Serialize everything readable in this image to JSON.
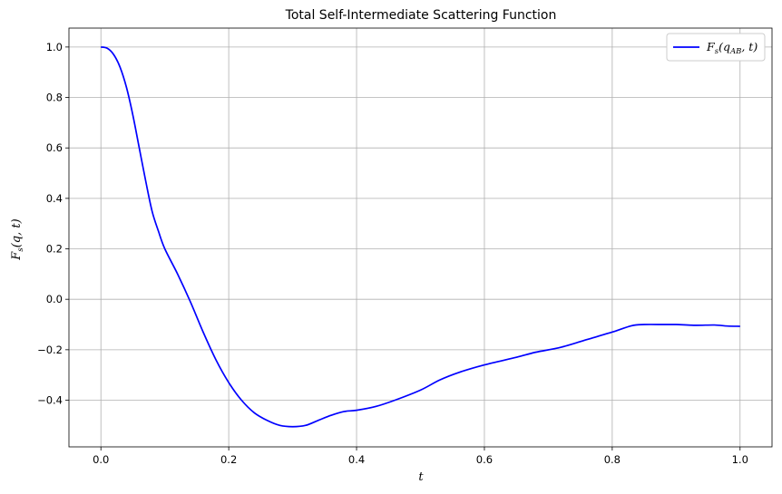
{
  "chart_data": {
    "type": "line",
    "title": "Total Self-Intermediate Scattering Function",
    "xlabel": "t",
    "ylabel": {
      "base": "F",
      "sub": "s",
      "args": "(q, t)"
    },
    "xlim": [
      -0.05,
      1.05
    ],
    "ylim": [
      -0.585,
      1.075
    ],
    "xticks": [
      0.0,
      0.2,
      0.4,
      0.6,
      0.8,
      1.0
    ],
    "xtick_labels": [
      "0.0",
      "0.2",
      "0.4",
      "0.6",
      "0.8",
      "1.0"
    ],
    "yticks": [
      -0.4,
      -0.2,
      0.0,
      0.2,
      0.4,
      0.6,
      0.8,
      1.0
    ],
    "ytick_labels": [
      "−0.4",
      "−0.2",
      "0.0",
      "0.2",
      "0.4",
      "0.6",
      "0.8",
      "1.0"
    ],
    "grid": true,
    "legend_position": "top-right",
    "series": [
      {
        "name": {
          "base": "F",
          "sub_s": "s",
          "arg_open": "(q",
          "sub_ab": "AB",
          "arg_close": ", t)"
        },
        "color": "#0000ff",
        "x": [
          0.0,
          0.01,
          0.02,
          0.03,
          0.04,
          0.05,
          0.06,
          0.07,
          0.08,
          0.09,
          0.1,
          0.12,
          0.14,
          0.16,
          0.18,
          0.2,
          0.22,
          0.24,
          0.26,
          0.28,
          0.3,
          0.32,
          0.34,
          0.36,
          0.38,
          0.4,
          0.43,
          0.46,
          0.5,
          0.53,
          0.56,
          0.6,
          0.65,
          0.68,
          0.72,
          0.76,
          0.8,
          0.83,
          0.85,
          0.88,
          0.9,
          0.93,
          0.96,
          0.98,
          1.0
        ],
        "y": [
          1.0,
          0.995,
          0.97,
          0.92,
          0.84,
          0.73,
          0.6,
          0.47,
          0.35,
          0.27,
          0.2,
          0.1,
          -0.01,
          -0.13,
          -0.24,
          -0.33,
          -0.4,
          -0.45,
          -0.48,
          -0.5,
          -0.505,
          -0.5,
          -0.48,
          -0.46,
          -0.445,
          -0.44,
          -0.425,
          -0.4,
          -0.36,
          -0.32,
          -0.29,
          -0.26,
          -0.23,
          -0.21,
          -0.19,
          -0.16,
          -0.13,
          -0.105,
          -0.1,
          -0.1,
          -0.1,
          -0.103,
          -0.102,
          -0.106,
          -0.107
        ]
      }
    ]
  }
}
